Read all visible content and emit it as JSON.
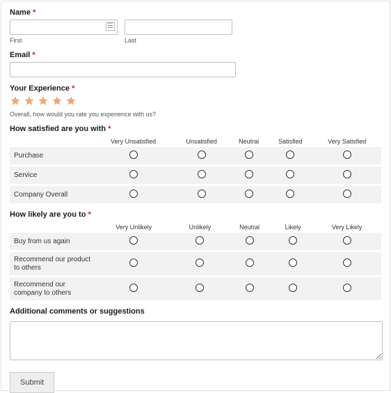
{
  "name": {
    "label": "Name",
    "required": "*",
    "first_sublabel": "First",
    "last_sublabel": "Last",
    "first_value": "",
    "last_value": ""
  },
  "email": {
    "label": "Email",
    "required": "*",
    "value": ""
  },
  "experience": {
    "label": "Your Experience",
    "required": "*",
    "help": "Overall, how would you rate you experience with us?",
    "star_count": 5,
    "star_color": "#eda97a"
  },
  "satisfaction": {
    "label": "How satisfied are you with",
    "required": "*",
    "headers": [
      "Very Unsatisfied",
      "Unsatisfied",
      "Neutral",
      "Satisfied",
      "Very Satisfied"
    ],
    "rows": [
      "Purchase",
      "Service",
      "Company Overall"
    ]
  },
  "likely": {
    "label": "How likely are you to",
    "required": "*",
    "headers": [
      "Very Unlikely",
      "Unlikely",
      "Neutral",
      "Likely",
      "Very Likely"
    ],
    "rows": [
      "Buy from us again",
      "Recommend our product to others",
      "Recommend our company to others"
    ]
  },
  "comments": {
    "label": "Additional comments or suggestions",
    "value": ""
  },
  "submit": {
    "label": "Submit"
  },
  "colors": {
    "border": "#e0e0e0",
    "input_border": "#bfbfbf",
    "required": "#c02020",
    "row_bg": "#f2f2f2",
    "star": "#eda97a"
  }
}
